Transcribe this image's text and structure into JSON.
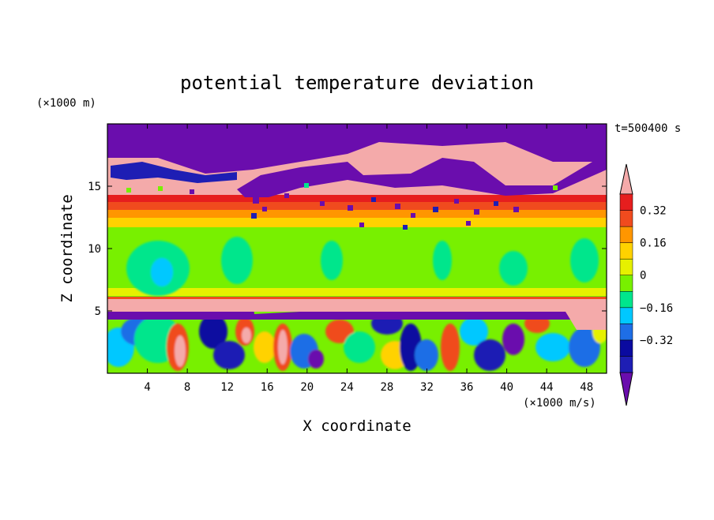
{
  "chart_data": {
    "type": "heatmap",
    "title": "potential temperature deviation",
    "time_label": "t=500400 s",
    "xlabel": "X coordinate",
    "ylabel": "Z coordinate",
    "x_unit": "(×1000 m/s)",
    "y_unit": "(×1000 m)",
    "xlim": [
      0,
      50
    ],
    "ylim": [
      0,
      20
    ],
    "x_ticks": [
      "4",
      "8",
      "12",
      "16",
      "20",
      "24",
      "28",
      "32",
      "36",
      "40",
      "44",
      "48"
    ],
    "y_ticks": [
      "5",
      "10",
      "15"
    ],
    "x_tick_values": [
      4,
      8,
      12,
      16,
      20,
      24,
      28,
      32,
      36,
      40,
      44,
      48
    ],
    "y_tick_values": [
      5,
      10,
      15
    ],
    "colorbar": {
      "levels": [
        -0.48,
        -0.4,
        -0.32,
        -0.24,
        -0.16,
        -0.08,
        0,
        0.08,
        0.16,
        0.24,
        0.32,
        0.4
      ],
      "colors": [
        "#6a0dad",
        "#1e1eb4",
        "#0a0aa0",
        "#1e6ee6",
        "#00c8ff",
        "#00e68c",
        "#78f000",
        "#e6f000",
        "#ffd200",
        "#ff9600",
        "#f04b1e",
        "#e61e1e",
        "#f4aaaa"
      ],
      "labels": [
        "0.32",
        "0.16",
        "0",
        "−0.16",
        "−0.32"
      ],
      "label_values": [
        0.32,
        0.16,
        0,
        -0.16,
        -0.32
      ]
    },
    "layers": [
      {
        "z": [
          0,
          5.5
        ],
        "dominant": "mixed turbulent (-0.48 to 0.48)"
      },
      {
        "z": [
          5.5,
          6.2
        ],
        "value": 0.48
      },
      {
        "z": [
          6.2,
          12.0
        ],
        "value": 0.02
      },
      {
        "z": [
          12.0,
          14.0
        ],
        "value": 0.3
      },
      {
        "z": [
          14.0,
          17.5
        ],
        "value": 0.48
      },
      {
        "z": [
          17.5,
          20.0
        ],
        "value": -0.48
      }
    ]
  }
}
